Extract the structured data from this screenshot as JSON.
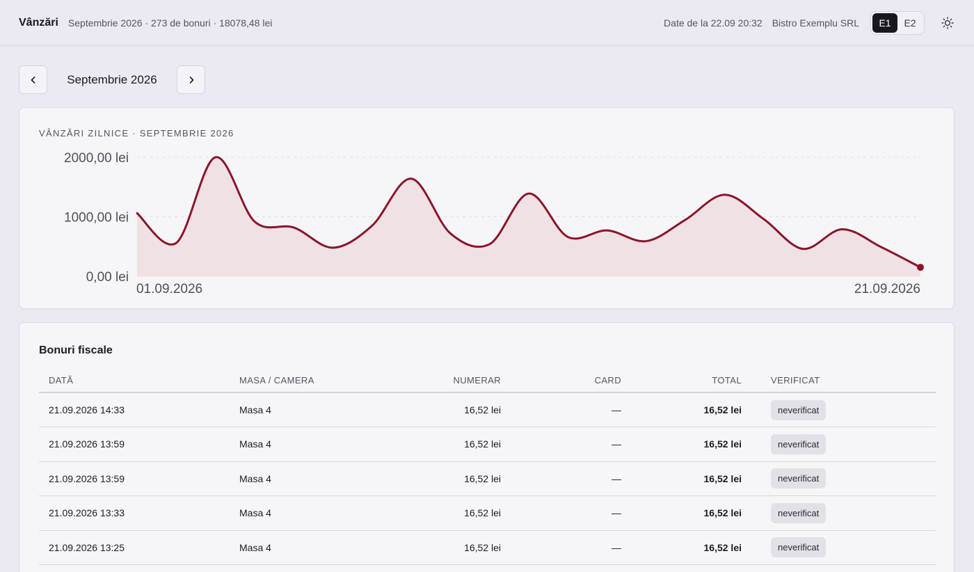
{
  "header": {
    "title": "Vânzări",
    "summary": "Septembrie 2026 · 273 de bonuri · 18078,48 lei",
    "data_stamp": "Date de la 22.09 20:32",
    "company": "Bistro Exemplu SRL",
    "segments": [
      "E1",
      "E2"
    ],
    "active_segment": "E1",
    "theme_icon": "sun-icon"
  },
  "month_nav": {
    "label": "Septembrie 2026",
    "prev_icon": "chevron-left-icon",
    "next_icon": "chevron-right-icon"
  },
  "chart_card": {
    "title": "VÂNZĂRI ZILNICE · SEPTEMBRIE 2026"
  },
  "chart_data": {
    "type": "area",
    "title": "VÂNZĂRI ZILNICE · SEPTEMBRIE 2026",
    "x": [
      "01.09.2026",
      "02.09.2026",
      "03.09.2026",
      "04.09.2026",
      "05.09.2026",
      "06.09.2026",
      "07.09.2026",
      "08.09.2026",
      "09.09.2026",
      "10.09.2026",
      "11.09.2026",
      "12.09.2026",
      "13.09.2026",
      "14.09.2026",
      "15.09.2026",
      "16.09.2026",
      "17.09.2026",
      "18.09.2026",
      "19.09.2026",
      "20.09.2026",
      "21.09.2026"
    ],
    "values": [
      1060,
      560,
      2000,
      920,
      820,
      480,
      850,
      1640,
      720,
      540,
      1390,
      660,
      770,
      590,
      950,
      1370,
      960,
      460,
      790,
      490,
      150
    ],
    "x_tick_labels": [
      "01.09.2026",
      "21.09.2026"
    ],
    "y_tick_labels": [
      "0,00 lei",
      "1000,00 lei",
      "2000,00 lei"
    ],
    "y_ticks": [
      0,
      1000,
      2000
    ],
    "ylim": [
      0,
      2000
    ],
    "grid": true,
    "legend": "none",
    "line_color": "#8a1529",
    "fill_color": "#efe1e4"
  },
  "table": {
    "title": "Bonuri fiscale",
    "columns": [
      "DATĂ",
      "MASA / CAMERA",
      "NUMERAR",
      "CARD",
      "TOTAL",
      "VERIFICAT"
    ],
    "rows": [
      {
        "date": "21.09.2026 14:33",
        "table": "Masa 4",
        "cash": "16,52 lei",
        "card": "—",
        "total": "16,52 lei",
        "status": "neverificat"
      },
      {
        "date": "21.09.2026 13:59",
        "table": "Masa 4",
        "cash": "16,52 lei",
        "card": "—",
        "total": "16,52 lei",
        "status": "neverificat"
      },
      {
        "date": "21.09.2026 13:59",
        "table": "Masa 4",
        "cash": "16,52 lei",
        "card": "—",
        "total": "16,52 lei",
        "status": "neverificat"
      },
      {
        "date": "21.09.2026 13:33",
        "table": "Masa 4",
        "cash": "16,52 lei",
        "card": "—",
        "total": "16,52 lei",
        "status": "neverificat"
      },
      {
        "date": "21.09.2026 13:25",
        "table": "Masa 4",
        "cash": "16,52 lei",
        "card": "—",
        "total": "16,52 lei",
        "status": "neverificat"
      },
      {
        "date": "",
        "table": "",
        "cash": "",
        "card": "",
        "total": "",
        "status": ""
      }
    ]
  }
}
